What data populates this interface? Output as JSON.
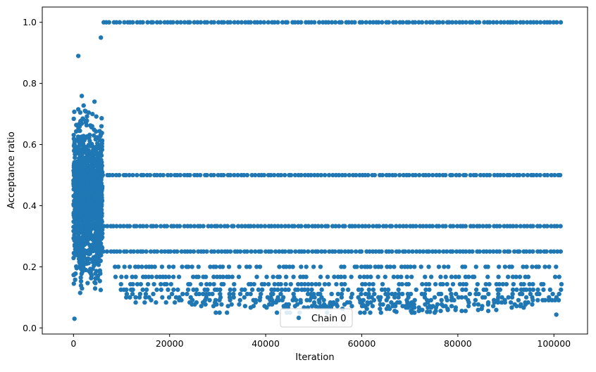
{
  "chart_data": {
    "type": "scatter",
    "xlabel": "Iteration",
    "ylabel": "Acceptance ratio",
    "xlim": [
      -6500,
      107000
    ],
    "ylim": [
      -0.02,
      1.05
    ],
    "xticks": [
      0,
      20000,
      40000,
      60000,
      80000,
      100000
    ],
    "xtick_labels": [
      "0",
      "20000",
      "40000",
      "60000",
      "80000",
      "100000"
    ],
    "yticks": [
      0.0,
      0.2,
      0.4,
      0.6,
      0.8,
      1.0
    ],
    "ytick_labels": [
      "0.0",
      "0.2",
      "0.4",
      "0.6",
      "0.8",
      "1.0"
    ],
    "grid": false,
    "legend_position": "lower-center",
    "series": [
      {
        "name": "Chain 0",
        "color": "#1f77b4",
        "marker": "circle",
        "burn_in": {
          "x_range": [
            0,
            6000
          ],
          "y_range": [
            0.03,
            0.95
          ],
          "y_center": 0.42,
          "notable_points": [
            {
              "x": 200,
              "y": 0.03
            },
            {
              "x": 1000,
              "y": 0.89
            },
            {
              "x": 5700,
              "y": 0.95
            }
          ]
        },
        "plateaus": [
          {
            "y": 1.0,
            "x_range": [
              6000,
              101500
            ]
          },
          {
            "y": 0.5,
            "x_range": [
              6000,
              101500
            ]
          },
          {
            "y": 0.333,
            "x_range": [
              6000,
              101500
            ]
          },
          {
            "y": 0.25,
            "x_range": [
              6000,
              101500
            ]
          },
          {
            "y": 0.2,
            "x_range": [
              8500,
              101500
            ]
          },
          {
            "y": 0.167,
            "x_range": [
              8500,
              101500
            ]
          },
          {
            "y": 0.143,
            "x_range": [
              9500,
              101500
            ]
          },
          {
            "y": 0.125,
            "x_range": [
              9500,
              101500
            ]
          },
          {
            "y": 0.111,
            "x_range": [
              10000,
              101500
            ]
          },
          {
            "y": 0.1,
            "x_range": [
              10000,
              101500
            ]
          },
          {
            "y": 0.0909,
            "x_range": [
              10500,
              101000
            ]
          },
          {
            "y": 0.0833,
            "x_range": [
              10500,
              101000
            ]
          },
          {
            "y": 0.0769,
            "x_range": [
              24500,
              96000
            ]
          },
          {
            "y": 0.0714,
            "x_range": [
              25500,
              95000
            ]
          },
          {
            "y": 0.0667,
            "x_range": [
              34500,
              94000
            ]
          },
          {
            "y": 0.0625,
            "x_range": [
              54500,
              91000
            ]
          },
          {
            "y": 0.0588,
            "x_range": [
              64500,
              91000
            ]
          },
          {
            "y": 0.0556,
            "x_range": [
              64500,
              91000
            ]
          },
          {
            "y": 0.0526,
            "x_range": [
              65500,
              76000
            ]
          },
          {
            "y": 0.05,
            "x_range": [
              29500,
              76000
            ]
          },
          {
            "y": 0.0435,
            "x_range": [
              100500,
              101000
            ]
          }
        ]
      }
    ]
  }
}
